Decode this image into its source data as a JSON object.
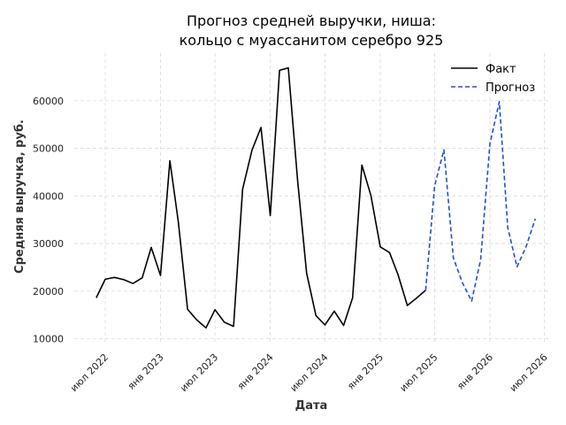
{
  "chart_data": {
    "type": "line",
    "title_line1": "Прогноз средней выручки, ниша:",
    "title_line2": "кольцо с муассанитом серебро 925",
    "xlabel": "Дата",
    "ylabel": "Средняя выручка, руб.",
    "ylim": [
      9000,
      70000
    ],
    "yticks": [
      10000,
      20000,
      30000,
      40000,
      50000,
      60000
    ],
    "ytick_labels": [
      "10000",
      "20000",
      "30000",
      "40000",
      "50000",
      "60000"
    ],
    "xlim": [
      "2022-03-20",
      "2026-07-20"
    ],
    "xticks": [
      {
        "date": "2022-07-01",
        "label": "июл 2022"
      },
      {
        "date": "2023-01-01",
        "label": "янв 2023"
      },
      {
        "date": "2023-07-01",
        "label": "июл 2023"
      },
      {
        "date": "2024-01-01",
        "label": "янв 2024"
      },
      {
        "date": "2024-07-01",
        "label": "июл 2024"
      },
      {
        "date": "2025-01-01",
        "label": "янв 2025"
      },
      {
        "date": "2025-07-01",
        "label": "июл 2025"
      },
      {
        "date": "2026-01-01",
        "label": "янв 2026"
      },
      {
        "date": "2026-07-01",
        "label": "июл 2026"
      }
    ],
    "grid": true,
    "legend_position": "top-right",
    "series": [
      {
        "name": "Факт",
        "color": "#000000",
        "dash": "solid",
        "points": [
          [
            "2022-06",
            18600
          ],
          [
            "2022-07",
            22500
          ],
          [
            "2022-08",
            22900
          ],
          [
            "2022-09",
            22400
          ],
          [
            "2022-10",
            21600
          ],
          [
            "2022-11",
            22800
          ],
          [
            "2022-12",
            29200
          ],
          [
            "2023-01",
            23300
          ],
          [
            "2023-02",
            47400
          ],
          [
            "2023-03",
            34600
          ],
          [
            "2023-04",
            16200
          ],
          [
            "2023-05",
            14000
          ],
          [
            "2023-06",
            12300
          ],
          [
            "2023-07",
            16100
          ],
          [
            "2023-08",
            13500
          ],
          [
            "2023-09",
            12600
          ],
          [
            "2023-10",
            41400
          ],
          [
            "2023-11",
            49600
          ],
          [
            "2023-12",
            54400
          ],
          [
            "2024-01",
            35900
          ],
          [
            "2024-02",
            66400
          ],
          [
            "2024-03",
            66900
          ],
          [
            "2024-04",
            43300
          ],
          [
            "2024-05",
            23800
          ],
          [
            "2024-06",
            14900
          ],
          [
            "2024-07",
            12900
          ],
          [
            "2024-08",
            15800
          ],
          [
            "2024-09",
            12800
          ],
          [
            "2024-10",
            18600
          ],
          [
            "2024-11",
            46500
          ],
          [
            "2024-12",
            40100
          ],
          [
            "2025-01",
            29300
          ],
          [
            "2025-02",
            28100
          ],
          [
            "2025-03",
            23500
          ],
          [
            "2025-04",
            17000
          ],
          [
            "2025-05",
            18500
          ],
          [
            "2025-06",
            20200
          ]
        ]
      },
      {
        "name": "Прогноз",
        "color": "#1f4fd0",
        "dash": "dashed",
        "points": [
          [
            "2025-06",
            20200
          ],
          [
            "2025-07",
            42200
          ],
          [
            "2025-08",
            49700
          ],
          [
            "2025-09",
            27000
          ],
          [
            "2025-10",
            21800
          ],
          [
            "2025-11",
            17900
          ],
          [
            "2025-12",
            26600
          ],
          [
            "2026-01",
            51000
          ],
          [
            "2026-02",
            59800
          ],
          [
            "2026-03",
            33400
          ],
          [
            "2026-04",
            25100
          ],
          [
            "2026-05",
            29300
          ],
          [
            "2026-06",
            35200
          ]
        ]
      }
    ]
  }
}
